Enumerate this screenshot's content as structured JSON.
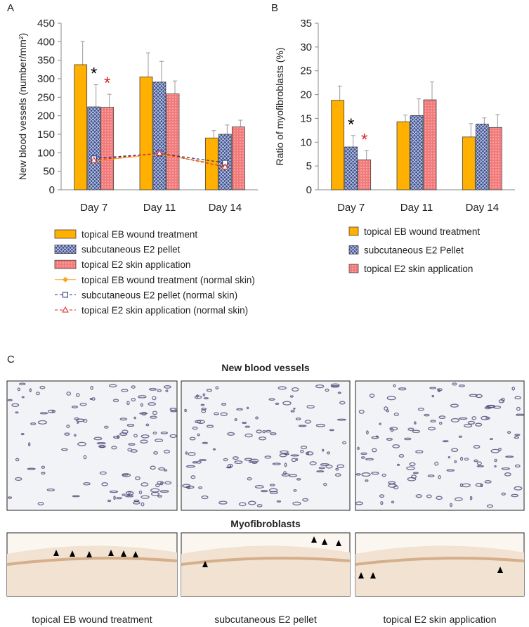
{
  "chart_data": [
    {
      "type": "bar",
      "panel": "A",
      "ylabel": "New blood vessels (number/mm²)",
      "categories": [
        "Day 7",
        "Day 11",
        "Day 14"
      ],
      "ylim": [
        0,
        450
      ],
      "yticks": [
        0,
        50,
        100,
        150,
        200,
        250,
        300,
        350,
        400,
        450
      ],
      "series": [
        {
          "name": "topical EB wound treatment",
          "color": "#ffb000",
          "pattern": "solid",
          "values": [
            338,
            305,
            140
          ],
          "errors": [
            63,
            65,
            20
          ]
        },
        {
          "name": "subcutaneous E2 pellet",
          "color": "#3c4f8e",
          "pattern": "crosshatch",
          "values": [
            224,
            291,
            150
          ],
          "errors": [
            60,
            56,
            25
          ]
        },
        {
          "name": "topical E2 skin application",
          "color": "#f27a7a",
          "pattern": "dots",
          "values": [
            223,
            259,
            170
          ],
          "errors": [
            35,
            35,
            18
          ]
        },
        {
          "name": "topical EB wound treatment (normal skin)",
          "type": "line",
          "color": "#f5a623",
          "marker": "diamond",
          "dash": "none",
          "values": [
            78,
            96,
            66
          ],
          "errors": [
            8,
            10,
            8
          ]
        },
        {
          "name": "subcutaneous E2 pellet (normal skin)",
          "type": "line",
          "color": "#1f2d7a",
          "marker": "square",
          "dash": "4 3",
          "values": [
            85,
            98,
            73
          ],
          "errors": [
            8,
            10,
            8
          ]
        },
        {
          "name": "topical E2 skin application (normal skin)",
          "type": "line",
          "color": "#e02020",
          "marker": "triangle",
          "dash": "4 3",
          "values": [
            80,
            99,
            62
          ],
          "errors": [
            8,
            10,
            8
          ]
        }
      ],
      "annotations": [
        {
          "text": "*",
          "color": "#000000",
          "category": 0,
          "series": 1
        },
        {
          "text": "*",
          "color": "#e02020",
          "category": 0,
          "series": 2
        }
      ]
    },
    {
      "type": "bar",
      "panel": "B",
      "ylabel": "Ratio of myofibroblasts (%)",
      "categories": [
        "Day 7",
        "Day 11",
        "Day 14"
      ],
      "ylim": [
        0,
        35
      ],
      "yticks": [
        0,
        5,
        10,
        15,
        20,
        25,
        30,
        35
      ],
      "series": [
        {
          "name": "topical EB wound treatment",
          "color": "#ffb000",
          "pattern": "solid",
          "values": [
            18.8,
            14.3,
            11.1
          ],
          "errors": [
            3,
            1.4,
            2.8
          ]
        },
        {
          "name": "subcutaneous E2 Pellet",
          "color": "#3c4f8e",
          "pattern": "crosshatch",
          "values": [
            9,
            15.6,
            13.8
          ],
          "errors": [
            2.4,
            3.5,
            1.3
          ]
        },
        {
          "name": "topical E2 skin application",
          "color": "#f27a7a",
          "pattern": "dots",
          "values": [
            6.3,
            18.9,
            13.1
          ],
          "errors": [
            1.9,
            3.8,
            2.7
          ]
        }
      ],
      "annotations": [
        {
          "text": "*",
          "color": "#000000",
          "category": 0,
          "series": 1
        },
        {
          "text": "*",
          "color": "#e02020",
          "category": 0,
          "series": 2
        }
      ]
    }
  ],
  "panel_c": {
    "label": "C",
    "row1_title": "New blood vessels",
    "row2_title": "Myofibroblasts",
    "captions": [
      "topical EB wound treatment",
      "subcutaneous E2 pellet",
      "topical E2 skin application"
    ]
  }
}
